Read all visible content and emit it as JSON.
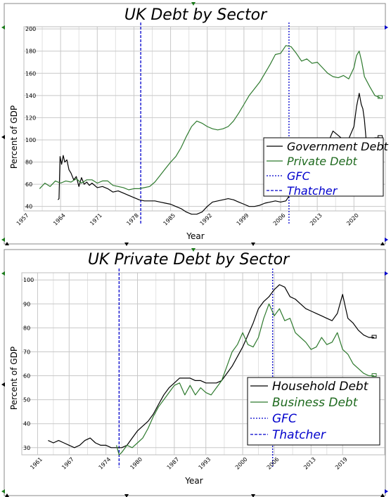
{
  "chart_data": [
    {
      "type": "line",
      "title": "UK Debt by Sector",
      "xlabel": "Year",
      "ylabel": "Percent of GDP",
      "xlim": [
        1957,
        2026
      ],
      "ylim": [
        36,
        202
      ],
      "x_ticks": [
        1957,
        1964,
        1971,
        1978,
        1985,
        1992,
        1999,
        2006,
        2013,
        2020
      ],
      "y_ticks": [
        40,
        60,
        80,
        100,
        120,
        140,
        160,
        180,
        200
      ],
      "grid": true,
      "legend_position": "right",
      "vlines": [
        {
          "name": "GFC",
          "x": 2007.6,
          "color": "#0000cc",
          "style": "dotted"
        },
        {
          "name": "Thatcher",
          "x": 1979.3,
          "color": "#0000cc",
          "style": "dashed"
        }
      ],
      "series": [
        {
          "name": "Government Debt",
          "color": "#000000",
          "points": [
            [
              1963.5,
              46
            ],
            [
              1963.7,
              47
            ],
            [
              1963.9,
              85
            ],
            [
              1964.2,
              78
            ],
            [
              1964.5,
              86
            ],
            [
              1964.8,
              80
            ],
            [
              1965.2,
              82
            ],
            [
              1965.6,
              73
            ],
            [
              1966,
              70
            ],
            [
              1966.5,
              64
            ],
            [
              1967,
              67
            ],
            [
              1967.5,
              58
            ],
            [
              1968,
              66
            ],
            [
              1968.5,
              60
            ],
            [
              1969,
              62
            ],
            [
              1969.5,
              59
            ],
            [
              1970,
              61
            ],
            [
              1971,
              57
            ],
            [
              1972,
              58
            ],
            [
              1973,
              56
            ],
            [
              1974,
              53
            ],
            [
              1975,
              54
            ],
            [
              1976,
              52
            ],
            [
              1977,
              50
            ],
            [
              1978,
              48
            ],
            [
              1979,
              46
            ],
            [
              1980,
              45
            ],
            [
              1981,
              45
            ],
            [
              1982,
              45
            ],
            [
              1983,
              44
            ],
            [
              1984,
              43
            ],
            [
              1985,
              42
            ],
            [
              1986,
              40
            ],
            [
              1987,
              38
            ],
            [
              1988,
              35
            ],
            [
              1989,
              33
            ],
            [
              1990,
              33
            ],
            [
              1991,
              35
            ],
            [
              1992,
              40
            ],
            [
              1993,
              44
            ],
            [
              1994,
              45
            ],
            [
              1995,
              46
            ],
            [
              1996,
              47
            ],
            [
              1997,
              46
            ],
            [
              1998,
              44
            ],
            [
              1999,
              42
            ],
            [
              2000,
              40
            ],
            [
              2001,
              40
            ],
            [
              2002,
              41
            ],
            [
              2003,
              43
            ],
            [
              2004,
              44
            ],
            [
              2005,
              45
            ],
            [
              2006,
              44
            ],
            [
              2007,
              45
            ],
            [
              2008,
              52
            ],
            [
              2009,
              66
            ],
            [
              2010,
              75
            ],
            [
              2011,
              82
            ],
            [
              2012,
              88
            ],
            [
              2013,
              86
            ],
            [
              2014,
              96
            ],
            [
              2015,
              97
            ],
            [
              2016,
              108
            ],
            [
              2017,
              104
            ],
            [
              2018,
              100
            ],
            [
              2019,
              101
            ],
            [
              2020,
              112
            ],
            [
              2020.5,
              130
            ],
            [
              2021,
              142
            ],
            [
              2021.4,
              132
            ],
            [
              2021.7,
              128
            ],
            [
              2022,
              118
            ],
            [
              2022.3,
              102
            ],
            [
              2022.8,
              99
            ],
            [
              2023.5,
              101
            ],
            [
              2024,
              102
            ],
            [
              2025,
              102
            ]
          ]
        },
        {
          "name": "Private Debt",
          "color": "#2e7a2e",
          "points": [
            [
              1960,
              56
            ],
            [
              1961,
              61
            ],
            [
              1962,
              58
            ],
            [
              1963,
              63
            ],
            [
              1964,
              61
            ],
            [
              1965,
              63
            ],
            [
              1966,
              62
            ],
            [
              1967,
              65
            ],
            [
              1968,
              61
            ],
            [
              1969,
              64
            ],
            [
              1970,
              64
            ],
            [
              1971,
              61
            ],
            [
              1972,
              63
            ],
            [
              1973,
              63
            ],
            [
              1974,
              59
            ],
            [
              1975,
              58
            ],
            [
              1976,
              57
            ],
            [
              1977,
              55
            ],
            [
              1978,
              56
            ],
            [
              1979,
              56
            ],
            [
              1980,
              57
            ],
            [
              1981,
              58
            ],
            [
              1982,
              62
            ],
            [
              1983,
              68
            ],
            [
              1984,
              74
            ],
            [
              1985,
              80
            ],
            [
              1986,
              85
            ],
            [
              1987,
              93
            ],
            [
              1988,
              103
            ],
            [
              1989,
              112
            ],
            [
              1990,
              117
            ],
            [
              1991,
              115
            ],
            [
              1992,
              112
            ],
            [
              1993,
              110
            ],
            [
              1994,
              109
            ],
            [
              1995,
              110
            ],
            [
              1996,
              112
            ],
            [
              1997,
              117
            ],
            [
              1998,
              124
            ],
            [
              1999,
              132
            ],
            [
              2000,
              140
            ],
            [
              2001,
              146
            ],
            [
              2002,
              152
            ],
            [
              2003,
              160
            ],
            [
              2004,
              168
            ],
            [
              2005,
              177
            ],
            [
              2006,
              178
            ],
            [
              2007,
              185
            ],
            [
              2008,
              184
            ],
            [
              2009,
              178
            ],
            [
              2010,
              171
            ],
            [
              2011,
              173
            ],
            [
              2012,
              169
            ],
            [
              2013,
              170
            ],
            [
              2014,
              165
            ],
            [
              2015,
              160
            ],
            [
              2016,
              157
            ],
            [
              2017,
              156
            ],
            [
              2018,
              158
            ],
            [
              2019,
              155
            ],
            [
              2020,
              165
            ],
            [
              2020.5,
              176
            ],
            [
              2021,
              180
            ],
            [
              2021.5,
              170
            ],
            [
              2022,
              157
            ],
            [
              2023,
              148
            ],
            [
              2024,
              140
            ],
            [
              2025,
              138
            ]
          ]
        }
      ]
    },
    {
      "type": "line",
      "title": "UK Private Debt by Sector",
      "xlabel": "Year",
      "ylabel": "Percent of GDP",
      "xlim": [
        1958,
        2027
      ],
      "ylim": [
        27,
        103
      ],
      "x_ticks": [
        1961,
        1967,
        1974,
        1980,
        1987,
        1993,
        2000,
        2006,
        2013,
        2019
      ],
      "y_ticks": [
        30,
        40,
        50,
        60,
        70,
        80,
        90,
        100
      ],
      "grid": true,
      "legend_position": "right",
      "vlines": [
        {
          "name": "GFC",
          "x": 2005.7,
          "color": "#0000cc",
          "style": "dotted"
        },
        {
          "name": "Thatcher",
          "x": 1976.5,
          "color": "#0000cc",
          "style": "dashed"
        }
      ],
      "series": [
        {
          "name": "Household Debt",
          "color": "#000000",
          "points": [
            [
              1963,
              33
            ],
            [
              1964,
              32
            ],
            [
              1965,
              33
            ],
            [
              1966,
              32
            ],
            [
              1967,
              31
            ],
            [
              1968,
              30
            ],
            [
              1969,
              31
            ],
            [
              1970,
              33
            ],
            [
              1971,
              34
            ],
            [
              1972,
              32
            ],
            [
              1973,
              31
            ],
            [
              1974,
              31
            ],
            [
              1975,
              30
            ],
            [
              1976,
              30
            ],
            [
              1977,
              30
            ],
            [
              1978,
              31
            ],
            [
              1979,
              34
            ],
            [
              1980,
              37
            ],
            [
              1981,
              39
            ],
            [
              1982,
              41
            ],
            [
              1983,
              44
            ],
            [
              1984,
              48
            ],
            [
              1985,
              52
            ],
            [
              1986,
              55
            ],
            [
              1987,
              57
            ],
            [
              1988,
              59
            ],
            [
              1989,
              59
            ],
            [
              1990,
              59
            ],
            [
              1991,
              58
            ],
            [
              1992,
              58
            ],
            [
              1993,
              57
            ],
            [
              1994,
              57
            ],
            [
              1995,
              57
            ],
            [
              1996,
              58
            ],
            [
              1997,
              61
            ],
            [
              1998,
              64
            ],
            [
              1999,
              68
            ],
            [
              2000,
              72
            ],
            [
              2001,
              77
            ],
            [
              2002,
              82
            ],
            [
              2003,
              88
            ],
            [
              2004,
              91
            ],
            [
              2005,
              93
            ],
            [
              2006,
              96
            ],
            [
              2007,
              98
            ],
            [
              2008,
              97
            ],
            [
              2009,
              93
            ],
            [
              2010,
              92
            ],
            [
              2011,
              90
            ],
            [
              2012,
              88
            ],
            [
              2013,
              87
            ],
            [
              2014,
              86
            ],
            [
              2015,
              85
            ],
            [
              2016,
              84
            ],
            [
              2017,
              83
            ],
            [
              2018,
              86
            ],
            [
              2019,
              94
            ],
            [
              2019.5,
              89
            ],
            [
              2020,
              84
            ],
            [
              2021,
              82
            ],
            [
              2022,
              79
            ],
            [
              2023,
              77
            ],
            [
              2024,
              76
            ],
            [
              2025,
              76
            ]
          ]
        },
        {
          "name": "Business Debt",
          "color": "#2e7a2e",
          "points": [
            [
              1976,
              31
            ],
            [
              1976.5,
              27
            ],
            [
              1977,
              28
            ],
            [
              1978,
              31
            ],
            [
              1979,
              30
            ],
            [
              1980,
              32
            ],
            [
              1981,
              34
            ],
            [
              1982,
              38
            ],
            [
              1983,
              43
            ],
            [
              1984,
              47
            ],
            [
              1985,
              50
            ],
            [
              1986,
              53
            ],
            [
              1987,
              56
            ],
            [
              1988,
              57
            ],
            [
              1989,
              52
            ],
            [
              1990,
              56
            ],
            [
              1991,
              52
            ],
            [
              1992,
              55
            ],
            [
              1993,
              53
            ],
            [
              1994,
              52
            ],
            [
              1995,
              55
            ],
            [
              1996,
              58
            ],
            [
              1997,
              64
            ],
            [
              1998,
              70
            ],
            [
              1999,
              73
            ],
            [
              2000,
              78
            ],
            [
              2001,
              73
            ],
            [
              2002,
              72
            ],
            [
              2003,
              76
            ],
            [
              2004,
              84
            ],
            [
              2005,
              90
            ],
            [
              2006,
              85
            ],
            [
              2007,
              88
            ],
            [
              2008,
              83
            ],
            [
              2009,
              84
            ],
            [
              2010,
              78
            ],
            [
              2011,
              76
            ],
            [
              2012,
              74
            ],
            [
              2013,
              71
            ],
            [
              2014,
              72
            ],
            [
              2015,
              76
            ],
            [
              2016,
              73
            ],
            [
              2017,
              74
            ],
            [
              2018,
              78
            ],
            [
              2019,
              71
            ],
            [
              2020,
              69
            ],
            [
              2021,
              65
            ],
            [
              2022,
              63
            ],
            [
              2023,
              61
            ],
            [
              2024,
              60
            ],
            [
              2025,
              60
            ]
          ]
        }
      ]
    }
  ],
  "colors": {
    "series_black": "#000000",
    "series_green": "#2e7a2e",
    "marker_blue": "#0000cc",
    "marker_green": "#1a7a1a",
    "grid": "#c8c8c8"
  }
}
